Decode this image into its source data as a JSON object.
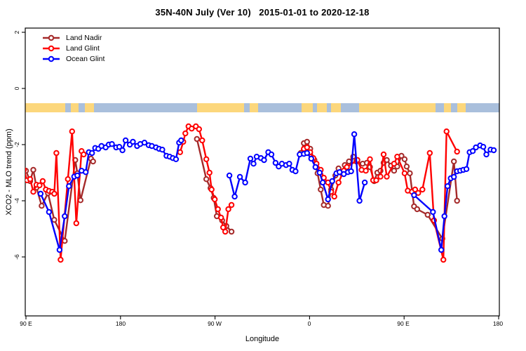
{
  "title": "35N-40N July (Ver 10)   2015-01-01 to 2020-12-18",
  "legend": {
    "items": [
      {
        "label": "Land Nadir",
        "color": "#A52A2A"
      },
      {
        "label": "Land Glint",
        "color": "#FF0000"
      },
      {
        "label": "Ocean Glint",
        "color": "#0000FF"
      }
    ]
  },
  "axes": {
    "x": {
      "label": "Longitude",
      "range": [
        90,
        540
      ],
      "note": "longitude axis wraps eastward: 90E → 180 → 90W → 0 → 90E → 180",
      "ticks": [
        {
          "pos": 90,
          "label": "90 E"
        },
        {
          "pos": 180,
          "label": "180"
        },
        {
          "pos": 270,
          "label": "90 W"
        },
        {
          "pos": 360,
          "label": "0"
        },
        {
          "pos": 450,
          "label": "90 E"
        },
        {
          "pos": 540,
          "label": "180"
        }
      ]
    },
    "y": {
      "label": "XCO2 - MLO trend (ppm)",
      "range": [
        -8.1,
        2.15
      ],
      "ticks": [
        {
          "pos": 2,
          "label": "2"
        },
        {
          "pos": 0,
          "label": "0"
        },
        {
          "pos": -2,
          "label": "-2"
        },
        {
          "pos": -4,
          "label": "-4"
        },
        {
          "pos": -6,
          "label": "-6"
        }
      ]
    }
  },
  "map_strip": {
    "description": "land/ocean strip for the 35N-40N latitude band drawn across the plot",
    "land_color": "#FCD77C",
    "ocean_color": "#A9BFDC",
    "y_top": 147,
    "height": 13,
    "segments": [
      [
        36,
        93,
        "land"
      ],
      [
        93,
        101,
        "ocean"
      ],
      [
        101,
        112,
        "land"
      ],
      [
        112,
        121,
        "ocean"
      ],
      [
        121,
        134,
        "land"
      ],
      [
        134,
        281,
        "ocean"
      ],
      [
        281,
        348,
        "land"
      ],
      [
        348,
        356,
        "ocean"
      ],
      [
        356,
        368,
        "land"
      ],
      [
        368,
        430,
        "ocean"
      ],
      [
        430,
        446,
        "land"
      ],
      [
        446,
        452,
        "ocean"
      ],
      [
        452,
        466,
        "land"
      ],
      [
        466,
        472,
        "ocean"
      ],
      [
        472,
        486,
        "land"
      ],
      [
        486,
        512,
        "ocean"
      ],
      [
        512,
        621,
        "land"
      ],
      [
        621,
        633,
        "ocean"
      ],
      [
        633,
        643,
        "land"
      ],
      [
        643,
        652,
        "ocean"
      ],
      [
        652,
        664,
        "land"
      ],
      [
        664,
        712,
        "ocean"
      ]
    ]
  },
  "chart_data": {
    "type": "line",
    "title": "35N-40N July (Ver 10)   2015-01-01 to 2020-12-18",
    "xlabel": "Longitude",
    "ylabel": "XCO2 - MLO trend (ppm)",
    "xlim": [
      90,
      540
    ],
    "ylim": [
      -8.1,
      2.15
    ],
    "grid": false,
    "legend_position": "top-left",
    "marker": "open-circle",
    "x_units": "degrees along wrapped longitude axis (90=90E, 180, 270=90W, 360=0, 450=90E, 540=180)",
    "series": [
      {
        "name": "Land Nadir",
        "color": "#A52A2A",
        "points": [
          [
            90,
            -2.93
          ],
          [
            94,
            -3.3
          ],
          [
            97,
            -2.9
          ],
          [
            100,
            -3.53
          ],
          [
            105,
            -4.18
          ],
          [
            111,
            -3.73
          ],
          [
            117,
            -4.68
          ],
          [
            127,
            -5.43
          ],
          [
            137,
            -2.55
          ],
          [
            139,
            -3.02
          ],
          [
            142,
            -3.98
          ],
          [
            152,
            -2.5
          ],
          [
            154,
            -2.6
          ],
          null,
          [
            253,
            -1.8
          ],
          [
            262,
            -3.23
          ],
          [
            266,
            -3.55
          ],
          [
            269,
            -3.9
          ],
          [
            272,
            -4.55
          ],
          [
            277,
            -4.7
          ],
          [
            281,
            -4.9
          ],
          [
            286,
            -5.1
          ],
          null,
          [
            352,
            -2.3
          ],
          [
            355,
            -1.95
          ],
          [
            358,
            -1.9
          ],
          [
            361,
            -2.15
          ],
          [
            365,
            -2.55
          ],
          [
            368,
            -3.02
          ],
          [
            371,
            -3.6
          ],
          [
            374,
            -4.15
          ],
          [
            378,
            -4.18
          ],
          [
            381,
            -3.6
          ],
          [
            385,
            -3.1
          ],
          [
            388,
            -2.85
          ],
          [
            391,
            -3.02
          ],
          [
            394,
            -2.73
          ],
          [
            398,
            -2.6
          ],
          [
            402,
            -2.43
          ],
          [
            405,
            -2.6
          ],
          [
            411,
            -2.68
          ],
          [
            415,
            -2.65
          ],
          [
            418,
            -2.8
          ],
          [
            422,
            -3.3
          ],
          [
            425,
            -3.0
          ],
          [
            428,
            -2.93
          ],
          [
            431,
            -2.65
          ],
          [
            434,
            -2.55
          ],
          [
            438,
            -2.75
          ],
          [
            441,
            -2.93
          ],
          [
            444,
            -2.78
          ],
          [
            448,
            -2.4
          ],
          [
            451,
            -2.52
          ],
          [
            453,
            -2.78
          ],
          [
            456,
            -3.02
          ],
          [
            460,
            -4.2
          ],
          [
            463,
            -4.3
          ],
          [
            473,
            -4.5
          ],
          [
            487,
            -5.35
          ],
          [
            498,
            -2.6
          ],
          [
            501,
            -4.0
          ]
        ]
      },
      {
        "name": "Land Glint",
        "color": "#FF0000",
        "points": [
          [
            88,
            -2.9
          ],
          [
            91,
            -3.27
          ],
          [
            94,
            -3.23
          ],
          [
            97,
            -3.68
          ],
          [
            100,
            -3.43
          ],
          [
            103,
            -3.45
          ],
          [
            106,
            -3.3
          ],
          [
            109,
            -3.6
          ],
          [
            112,
            -3.65
          ],
          [
            115,
            -3.68
          ],
          [
            117,
            -3.75
          ],
          [
            119,
            -2.3
          ],
          [
            123,
            -6.1
          ],
          [
            130,
            -3.23
          ],
          [
            134,
            -1.53
          ],
          [
            138,
            -4.8
          ],
          [
            143,
            -2.23
          ],
          [
            145,
            -2.35
          ],
          null,
          [
            237,
            -2.27
          ],
          [
            240,
            -1.9
          ],
          [
            242,
            -1.6
          ],
          [
            245,
            -1.35
          ],
          [
            248,
            -1.43
          ],
          [
            252,
            -1.35
          ],
          [
            255,
            -1.45
          ],
          [
            258,
            -1.85
          ],
          [
            262,
            -2.52
          ],
          [
            265,
            -3.0
          ],
          [
            267,
            -3.6
          ],
          [
            270,
            -3.95
          ],
          [
            273,
            -4.3
          ],
          [
            276,
            -4.6
          ],
          [
            278,
            -4.95
          ],
          [
            280,
            -5.1
          ],
          [
            283,
            -4.3
          ],
          [
            286,
            -4.15
          ],
          null,
          [
            355,
            -2.15
          ],
          [
            358,
            -2.1
          ],
          [
            361,
            -2.27
          ],
          [
            364,
            -2.48
          ],
          [
            367,
            -2.68
          ],
          [
            371,
            -2.9
          ],
          [
            374,
            -3.18
          ],
          [
            378,
            -3.35
          ],
          [
            381,
            -3.68
          ],
          [
            384,
            -3.85
          ],
          [
            388,
            -3.35
          ],
          [
            393,
            -2.93
          ],
          [
            396,
            -2.8
          ],
          [
            406,
            -2.55
          ],
          [
            410,
            -2.9
          ],
          [
            414,
            -2.93
          ],
          [
            418,
            -2.52
          ],
          [
            421,
            -3.27
          ],
          [
            424,
            -3.27
          ],
          [
            428,
            -3.14
          ],
          [
            431,
            -2.35
          ],
          [
            434,
            -3.14
          ],
          [
            441,
            -2.68
          ],
          [
            444,
            -2.43
          ],
          [
            451,
            -3.02
          ],
          [
            454,
            -3.64
          ],
          [
            458,
            -3.68
          ],
          [
            461,
            -3.6
          ],
          [
            464,
            -3.72
          ],
          [
            468,
            -3.6
          ],
          [
            475,
            -2.3
          ],
          [
            479,
            -4.7
          ],
          [
            488,
            -6.1
          ],
          [
            491,
            -1.53
          ],
          [
            501,
            -2.25
          ]
        ]
      },
      {
        "name": "Ocean Glint",
        "color": "#0000FF",
        "points": [
          [
            104,
            -3.75
          ],
          [
            112,
            -4.4
          ],
          [
            122,
            -5.75
          ],
          [
            127,
            -4.55
          ],
          [
            131,
            -3.48
          ],
          [
            136,
            -3.14
          ],
          [
            139,
            -3.1
          ],
          [
            143,
            -2.93
          ],
          [
            147,
            -2.98
          ],
          [
            150,
            -2.27
          ],
          [
            153,
            -2.3
          ],
          [
            156,
            -2.12
          ],
          [
            159,
            -2.15
          ],
          [
            162,
            -2.05
          ],
          [
            166,
            -2.1
          ],
          [
            169,
            -2.0
          ],
          [
            172,
            -1.98
          ],
          [
            176,
            -2.1
          ],
          [
            179,
            -2.08
          ],
          [
            182,
            -2.2
          ],
          [
            185,
            -1.85
          ],
          [
            189,
            -2.0
          ],
          [
            192,
            -1.9
          ],
          [
            196,
            -2.05
          ],
          [
            199,
            -1.98
          ],
          [
            203,
            -1.93
          ],
          [
            207,
            -2.02
          ],
          [
            210,
            -2.05
          ],
          [
            214,
            -2.1
          ],
          [
            217,
            -2.15
          ],
          [
            220,
            -2.18
          ],
          [
            224,
            -2.4
          ],
          [
            227,
            -2.43
          ],
          [
            230,
            -2.48
          ],
          [
            233,
            -2.52
          ],
          [
            236,
            -1.93
          ],
          [
            238,
            -1.85
          ],
          null,
          [
            284,
            -3.1
          ],
          [
            289,
            -3.85
          ],
          [
            294,
            -3.15
          ],
          [
            299,
            -3.35
          ],
          [
            304,
            -2.5
          ],
          [
            307,
            -2.68
          ],
          [
            310,
            -2.43
          ],
          [
            314,
            -2.48
          ],
          [
            317,
            -2.55
          ],
          [
            321,
            -2.27
          ],
          [
            324,
            -2.35
          ],
          [
            328,
            -2.65
          ],
          [
            331,
            -2.78
          ],
          [
            334,
            -2.68
          ],
          [
            338,
            -2.73
          ],
          [
            341,
            -2.68
          ],
          [
            344,
            -2.9
          ],
          [
            347,
            -2.95
          ],
          [
            351,
            -2.35
          ],
          [
            355,
            -2.33
          ],
          [
            358,
            -2.3
          ],
          [
            362,
            -2.5
          ],
          [
            366,
            -2.8
          ],
          [
            370,
            -3.0
          ],
          [
            373,
            -3.35
          ],
          [
            378,
            -3.95
          ],
          [
            382,
            -3.3
          ],
          [
            386,
            -3.02
          ],
          [
            389,
            -2.98
          ],
          [
            393,
            -3.05
          ],
          [
            397,
            -2.98
          ],
          [
            400,
            -2.95
          ],
          [
            403,
            -1.63
          ],
          [
            408,
            -4.0
          ],
          [
            413,
            -3.35
          ],
          null,
          [
            460,
            -3.8
          ],
          [
            478,
            -4.4
          ],
          [
            486,
            -5.75
          ],
          [
            489,
            -4.55
          ],
          [
            492,
            -3.48
          ],
          [
            495,
            -3.2
          ],
          [
            498,
            -3.15
          ],
          [
            501,
            -2.95
          ],
          [
            504,
            -2.93
          ],
          [
            507,
            -2.9
          ],
          [
            510,
            -2.87
          ],
          [
            513,
            -2.27
          ],
          [
            516,
            -2.23
          ],
          [
            519,
            -2.1
          ],
          [
            523,
            -2.03
          ],
          [
            526,
            -2.08
          ],
          [
            529,
            -2.35
          ],
          [
            533,
            -2.18
          ],
          [
            536,
            -2.2
          ]
        ]
      }
    ]
  }
}
